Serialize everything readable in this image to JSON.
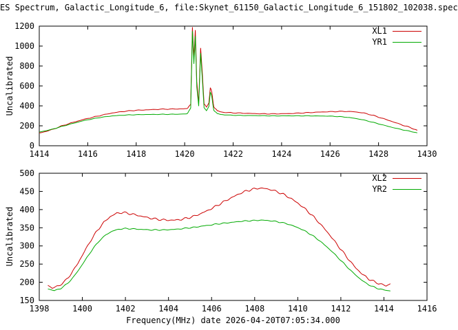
{
  "title": "ES Spectrum, Galactic_Longitude_6, file:Skynet_61150_Galactic_Longitude_6_151802_102038.spec",
  "colors": {
    "xl": "#cc0000",
    "yr": "#00aa00",
    "axis": "#000000",
    "background": "#ffffff"
  },
  "chart_data": [
    {
      "id": "top",
      "type": "line",
      "title": "",
      "xlabel": "",
      "ylabel": "Uncalibrated",
      "xlim": [
        1414,
        1430
      ],
      "ylim": [
        0,
        1200
      ],
      "xticks": [
        1414,
        1416,
        1418,
        1420,
        1422,
        1424,
        1426,
        1428,
        1430
      ],
      "yticks": [
        0,
        200,
        400,
        600,
        800,
        1000,
        1200
      ],
      "grid": false,
      "legend_position": "top-right",
      "series": [
        {
          "name": "XL1",
          "color": "#cc0000",
          "noise": 4,
          "points": [
            [
              1414.0,
              128
            ],
            [
              1414.3,
              145
            ],
            [
              1414.6,
              168
            ],
            [
              1415.0,
              205
            ],
            [
              1415.4,
              235
            ],
            [
              1415.8,
              262
            ],
            [
              1416.2,
              285
            ],
            [
              1416.6,
              308
            ],
            [
              1417.0,
              328
            ],
            [
              1417.4,
              342
            ],
            [
              1417.8,
              352
            ],
            [
              1418.2,
              358
            ],
            [
              1418.6,
              362
            ],
            [
              1419.0,
              366
            ],
            [
              1419.4,
              368
            ],
            [
              1419.8,
              370
            ],
            [
              1420.1,
              372
            ],
            [
              1420.25,
              420
            ],
            [
              1420.32,
              1190
            ],
            [
              1420.38,
              880
            ],
            [
              1420.44,
              1160
            ],
            [
              1420.5,
              640
            ],
            [
              1420.58,
              430
            ],
            [
              1420.66,
              980
            ],
            [
              1420.72,
              760
            ],
            [
              1420.8,
              420
            ],
            [
              1420.9,
              385
            ],
            [
              1421.0,
              430
            ],
            [
              1421.06,
              585
            ],
            [
              1421.12,
              540
            ],
            [
              1421.2,
              390
            ],
            [
              1421.35,
              350
            ],
            [
              1421.5,
              338
            ],
            [
              1421.8,
              332
            ],
            [
              1422.2,
              328
            ],
            [
              1422.6,
              325
            ],
            [
              1423.0,
              322
            ],
            [
              1423.4,
              320
            ],
            [
              1423.8,
              320
            ],
            [
              1424.2,
              322
            ],
            [
              1424.6,
              326
            ],
            [
              1425.0,
              331
            ],
            [
              1425.4,
              336
            ],
            [
              1425.8,
              340
            ],
            [
              1426.2,
              343
            ],
            [
              1426.6,
              345
            ],
            [
              1427.0,
              341
            ],
            [
              1427.4,
              328
            ],
            [
              1427.8,
              303
            ],
            [
              1428.2,
              272
            ],
            [
              1428.6,
              240
            ],
            [
              1429.0,
              207
            ],
            [
              1429.3,
              183
            ],
            [
              1429.6,
              155
            ]
          ]
        },
        {
          "name": "YR1",
          "color": "#00aa00",
          "noise": 2.5,
          "points": [
            [
              1414.0,
              138
            ],
            [
              1414.3,
              152
            ],
            [
              1414.6,
              170
            ],
            [
              1415.0,
              198
            ],
            [
              1415.4,
              225
            ],
            [
              1415.8,
              250
            ],
            [
              1416.2,
              270
            ],
            [
              1416.6,
              287
            ],
            [
              1417.0,
              299
            ],
            [
              1417.4,
              306
            ],
            [
              1417.8,
              310
            ],
            [
              1418.2,
              313
            ],
            [
              1418.6,
              314
            ],
            [
              1419.0,
              315
            ],
            [
              1419.4,
              316
            ],
            [
              1419.8,
              317
            ],
            [
              1420.1,
              320
            ],
            [
              1420.25,
              380
            ],
            [
              1420.32,
              1150
            ],
            [
              1420.38,
              820
            ],
            [
              1420.44,
              1100
            ],
            [
              1420.5,
              590
            ],
            [
              1420.58,
              400
            ],
            [
              1420.66,
              930
            ],
            [
              1420.72,
              700
            ],
            [
              1420.8,
              380
            ],
            [
              1420.9,
              350
            ],
            [
              1421.0,
              395
            ],
            [
              1421.06,
              540
            ],
            [
              1421.12,
              495
            ],
            [
              1421.2,
              355
            ],
            [
              1421.35,
              322
            ],
            [
              1421.5,
              313
            ],
            [
              1421.8,
              308
            ],
            [
              1422.2,
              305
            ],
            [
              1422.6,
              303
            ],
            [
              1423.0,
              302
            ],
            [
              1423.4,
              301
            ],
            [
              1423.8,
              300
            ],
            [
              1424.2,
              300
            ],
            [
              1424.6,
              300
            ],
            [
              1425.0,
              300
            ],
            [
              1425.4,
              299
            ],
            [
              1425.8,
              298
            ],
            [
              1426.2,
              295
            ],
            [
              1426.6,
              288
            ],
            [
              1427.0,
              276
            ],
            [
              1427.4,
              258
            ],
            [
              1427.8,
              233
            ],
            [
              1428.2,
              207
            ],
            [
              1428.6,
              182
            ],
            [
              1429.0,
              160
            ],
            [
              1429.3,
              145
            ],
            [
              1429.6,
              130
            ]
          ]
        }
      ]
    },
    {
      "id": "bottom",
      "type": "line",
      "title": "",
      "xlabel": "Frequency(MHz) date 2026-04-20T07:05:34.000",
      "ylabel": "Uncalibrated",
      "xlim": [
        1398,
        1416
      ],
      "ylim": [
        150,
        500
      ],
      "xticks": [
        1398,
        1400,
        1402,
        1404,
        1406,
        1408,
        1410,
        1412,
        1414,
        1416
      ],
      "yticks": [
        150,
        200,
        250,
        300,
        350,
        400,
        450,
        500
      ],
      "grid": false,
      "legend_position": "top-right",
      "series": [
        {
          "name": "XL2",
          "color": "#cc0000",
          "noise": 3,
          "points": [
            [
              1398.4,
              192
            ],
            [
              1398.6,
              184
            ],
            [
              1398.9,
              190
            ],
            [
              1399.2,
              203
            ],
            [
              1399.5,
              225
            ],
            [
              1399.8,
              253
            ],
            [
              1400.1,
              285
            ],
            [
              1400.4,
              316
            ],
            [
              1400.7,
              343
            ],
            [
              1401.0,
              365
            ],
            [
              1401.3,
              381
            ],
            [
              1401.6,
              390
            ],
            [
              1401.9,
              392
            ],
            [
              1402.2,
              389
            ],
            [
              1402.5,
              385
            ],
            [
              1402.8,
              381
            ],
            [
              1403.1,
              377
            ],
            [
              1403.4,
              374
            ],
            [
              1403.7,
              372
            ],
            [
              1404.0,
              371
            ],
            [
              1404.3,
              371
            ],
            [
              1404.6,
              373
            ],
            [
              1404.9,
              377
            ],
            [
              1405.2,
              382
            ],
            [
              1405.5,
              389
            ],
            [
              1405.8,
              397
            ],
            [
              1406.1,
              406
            ],
            [
              1406.4,
              416
            ],
            [
              1406.7,
              426
            ],
            [
              1407.0,
              435
            ],
            [
              1407.3,
              444
            ],
            [
              1407.6,
              451
            ],
            [
              1407.9,
              456
            ],
            [
              1408.2,
              459
            ],
            [
              1408.5,
              458
            ],
            [
              1408.8,
              454
            ],
            [
              1409.1,
              448
            ],
            [
              1409.4,
              440
            ],
            [
              1409.7,
              430
            ],
            [
              1410.0,
              418
            ],
            [
              1410.3,
              404
            ],
            [
              1410.6,
              388
            ],
            [
              1410.9,
              370
            ],
            [
              1411.2,
              350
            ],
            [
              1411.5,
              329
            ],
            [
              1411.8,
              306
            ],
            [
              1412.1,
              283
            ],
            [
              1412.4,
              260
            ],
            [
              1412.7,
              239
            ],
            [
              1413.0,
              222
            ],
            [
              1413.3,
              209
            ],
            [
              1413.6,
              200
            ],
            [
              1413.9,
              194
            ],
            [
              1414.1,
              190
            ],
            [
              1414.3,
              196
            ]
          ]
        },
        {
          "name": "YR2",
          "color": "#00aa00",
          "noise": 1.5,
          "points": [
            [
              1398.4,
              182
            ],
            [
              1398.7,
              177
            ],
            [
              1399.0,
              183
            ],
            [
              1399.3,
              196
            ],
            [
              1399.6,
              215
            ],
            [
              1399.9,
              240
            ],
            [
              1400.2,
              267
            ],
            [
              1400.5,
              293
            ],
            [
              1400.8,
              315
            ],
            [
              1401.1,
              331
            ],
            [
              1401.4,
              341
            ],
            [
              1401.7,
              346
            ],
            [
              1402.0,
              348
            ],
            [
              1402.3,
              347
            ],
            [
              1402.6,
              346
            ],
            [
              1402.9,
              345
            ],
            [
              1403.2,
              344
            ],
            [
              1403.5,
              344
            ],
            [
              1403.8,
              344
            ],
            [
              1404.1,
              345
            ],
            [
              1404.4,
              346
            ],
            [
              1404.7,
              348
            ],
            [
              1405.0,
              350
            ],
            [
              1405.3,
              352
            ],
            [
              1405.6,
              355
            ],
            [
              1405.9,
              357
            ],
            [
              1406.2,
              360
            ],
            [
              1406.5,
              362
            ],
            [
              1406.8,
              364
            ],
            [
              1407.1,
              366
            ],
            [
              1407.4,
              368
            ],
            [
              1407.7,
              369
            ],
            [
              1408.0,
              370
            ],
            [
              1408.3,
              371
            ],
            [
              1408.6,
              370
            ],
            [
              1408.9,
              368
            ],
            [
              1409.2,
              365
            ],
            [
              1409.5,
              361
            ],
            [
              1409.8,
              355
            ],
            [
              1410.1,
              348
            ],
            [
              1410.4,
              339
            ],
            [
              1410.7,
              328
            ],
            [
              1411.0,
              315
            ],
            [
              1411.3,
              300
            ],
            [
              1411.6,
              284
            ],
            [
              1411.9,
              266
            ],
            [
              1412.2,
              248
            ],
            [
              1412.5,
              230
            ],
            [
              1412.8,
              214
            ],
            [
              1413.1,
              200
            ],
            [
              1413.4,
              190
            ],
            [
              1413.7,
              183
            ],
            [
              1414.0,
              179
            ],
            [
              1414.3,
              176
            ]
          ]
        }
      ]
    }
  ]
}
